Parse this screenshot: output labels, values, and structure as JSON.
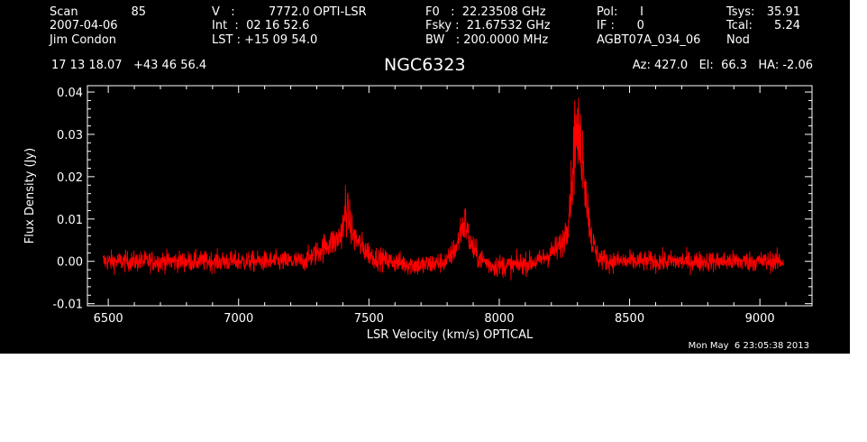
{
  "header": {
    "col1": [
      "Scan",
      "2007-04-06",
      "Jim Condon"
    ],
    "scan_number": "85",
    "col2": [
      "V   :",
      "Int  :  02 16 52.6",
      "LST : +15 09 54.0"
    ],
    "velocity_value": "7772.0 OPTI-LSR",
    "col3": [
      "F0   :  22.23508 GHz",
      "Fsky :  21.67532 GHz",
      "BW   : 200.0000 MHz"
    ],
    "col4": [
      "Pol:      I",
      "IF :      0",
      "AGBT07A_034_06"
    ],
    "col5": [
      "Tsys:",
      "Tcal:",
      "Nod"
    ],
    "tsys_value": "35.91",
    "tcal_value": "5.24",
    "coords": "17 13 18.07   +43 46 56.4",
    "source": "NGC6323",
    "pointing": "Az: 427.0   El:  66.3   HA: -2.06",
    "timestamp": "Mon May  6 23:05:38 2013"
  },
  "colors": {
    "background": "#000000",
    "axes": "#ffffff",
    "trace": "#ff0000"
  },
  "chart_data": {
    "type": "line",
    "xlabel": "LSR Velocity (km/s) OPTICAL",
    "ylabel": "Flux Density (Jy)",
    "xlim": [
      6420,
      9200
    ],
    "ylim": [
      -0.0105,
      0.0415
    ],
    "x_ticks": [
      6500,
      7000,
      7500,
      8000,
      8500,
      9000
    ],
    "y_ticks": [
      -0.01,
      0.0,
      0.01,
      0.02,
      0.03,
      0.04
    ],
    "y_tick_labels": [
      "-0.01",
      "0.00",
      "0.01",
      "0.02",
      "0.03",
      "0.04"
    ],
    "series": [
      {
        "x_range": [
          6480,
          9090
        ],
        "noise_rms": 0.0012,
        "profile": [
          [
            6480,
            0.0
          ],
          [
            7250,
            0.0
          ],
          [
            7300,
            0.002
          ],
          [
            7340,
            0.004
          ],
          [
            7380,
            0.005
          ],
          [
            7400,
            0.008
          ],
          [
            7415,
            0.012
          ],
          [
            7440,
            0.006
          ],
          [
            7480,
            0.003
          ],
          [
            7520,
            0.001
          ],
          [
            7580,
            0.0
          ],
          [
            7700,
            -0.001
          ],
          [
            7800,
            0.0
          ],
          [
            7840,
            0.004
          ],
          [
            7855,
            0.008
          ],
          [
            7870,
            0.009
          ],
          [
            7890,
            0.004
          ],
          [
            7920,
            0.001
          ],
          [
            7970,
            -0.001
          ],
          [
            8050,
            -0.001
          ],
          [
            8150,
            0.0
          ],
          [
            8200,
            0.002
          ],
          [
            8240,
            0.004
          ],
          [
            8260,
            0.008
          ],
          [
            8280,
            0.02
          ],
          [
            8295,
            0.03
          ],
          [
            8310,
            0.028
          ],
          [
            8325,
            0.022
          ],
          [
            8340,
            0.012
          ],
          [
            8355,
            0.005
          ],
          [
            8380,
            0.001
          ],
          [
            8420,
            0.0
          ],
          [
            9090,
            0.0
          ]
        ],
        "spikes": [
          [
            7410,
            0.018
          ],
          [
            7870,
            0.011
          ],
          [
            8270,
            0.016
          ],
          [
            8290,
            0.038
          ],
          [
            8305,
            0.032
          ],
          [
            8320,
            0.031
          ]
        ]
      }
    ]
  }
}
